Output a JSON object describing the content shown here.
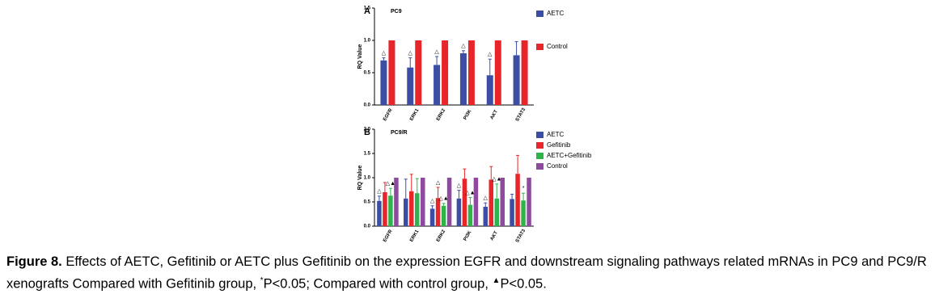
{
  "chart_data": [
    {
      "type": "bar",
      "panel": "A",
      "title": "PC9",
      "ylabel": "RQ Value",
      "categories": [
        "EGFR",
        "ERK1",
        "ERK2",
        "PI3K",
        "AKT",
        "STAT3"
      ],
      "ylim": [
        0,
        1.5
      ],
      "yticks": [
        {
          "value": 0,
          "label": "0.0"
        },
        0.5,
        {
          "value": 1,
          "label": "1.0"
        },
        1.5
      ],
      "series": [
        {
          "name": "AETC",
          "color": "#3b4ea3",
          "values": [
            0.69,
            0.58,
            0.62,
            0.8,
            0.46,
            0.77
          ],
          "errors": [
            0.04,
            0.15,
            0.13,
            0.04,
            0.25,
            0.21
          ],
          "markers": [
            "△",
            "△",
            "△",
            "△",
            "△",
            null
          ]
        },
        {
          "name": "Control",
          "color": "#e8262a",
          "values": [
            1,
            1,
            1,
            1,
            1,
            1
          ]
        }
      ]
    },
    {
      "type": "bar",
      "panel": "B",
      "title": "PC9/R",
      "ylabel": "RQ Value",
      "categories": [
        "EGFR",
        "ERK1",
        "ERK2",
        "PI3K",
        "AKT",
        "STAT3"
      ],
      "ylim": [
        0,
        2
      ],
      "yticks": [
        {
          "value": 0,
          "label": "0.0"
        },
        0.5,
        {
          "value": 1,
          "label": "1.0"
        },
        1.5,
        {
          "value": 2,
          "label": "2.0"
        }
      ],
      "series": [
        {
          "name": "AETC",
          "color": "#3b4ea3",
          "values": [
            0.52,
            0.57,
            0.36,
            0.57,
            0.4,
            0.56
          ],
          "errors": [
            0.1,
            0.4,
            0.06,
            0.17,
            0.08,
            0.1
          ],
          "markers": [
            "△",
            null,
            "△",
            "△",
            "△",
            null
          ]
        },
        {
          "name": "Gefitinib",
          "color": "#e8262a",
          "values": [
            0.7,
            0.72,
            0.58,
            0.98,
            0.96,
            1.08
          ],
          "errors": [
            0.2,
            0.35,
            0.22,
            0.2,
            0.27,
            0.38
          ],
          "markers": [
            null,
            null,
            "△",
            null,
            null,
            null
          ]
        },
        {
          "name": "AETC+Gefitinib",
          "color": "#2fb34a",
          "values": [
            0.63,
            0.68,
            0.42,
            0.44,
            0.57,
            0.53
          ],
          "errors": [
            0.15,
            0.3,
            0.05,
            0.15,
            0.3,
            0.15
          ],
          "markers": [
            "△▲",
            null,
            "△▲",
            "△▲",
            "△▲",
            "*"
          ]
        },
        {
          "name": "Control",
          "color": "#8e4a9e",
          "values": [
            1,
            1,
            1,
            1,
            1,
            1
          ]
        }
      ]
    }
  ],
  "caption": {
    "label": "Figure 8.",
    "text1": " Effects of AETC, Gefitinib or AETC plus Gefitinib on the expression EGFR and downstream signaling pathways related mRNAs in PC9 and PC9/R xenografts Compared with Gefitinib group, ",
    "sup1": "*",
    "text2": "P<0.05; Compared with control group, ",
    "sup2": "▲",
    "text3": "P<0.05."
  }
}
